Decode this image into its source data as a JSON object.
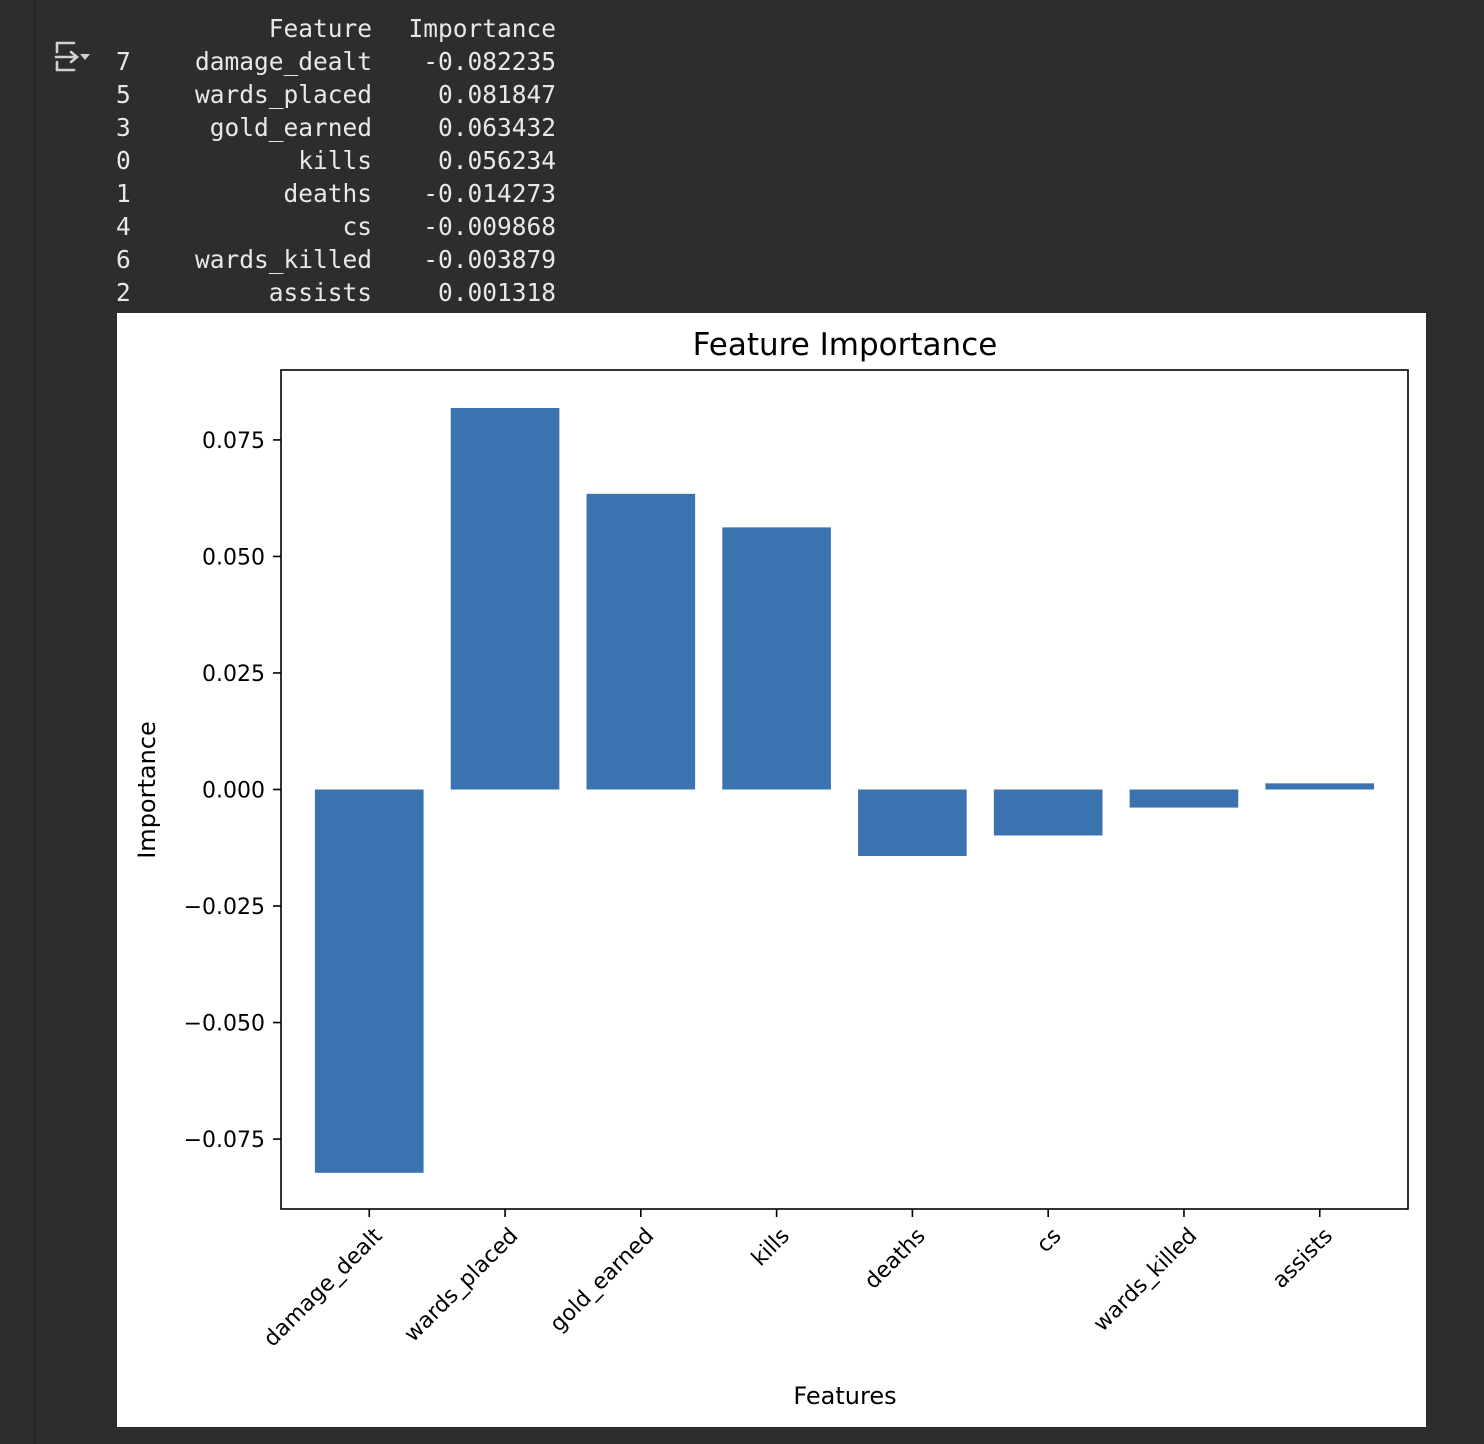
{
  "output_icon": "output-toggle-icon",
  "table": {
    "headers": [
      "",
      "Feature",
      "Importance"
    ],
    "rows": [
      {
        "index": "7",
        "feature": "damage_dealt",
        "importance": "-0.082235"
      },
      {
        "index": "5",
        "feature": "wards_placed",
        "importance": "0.081847"
      },
      {
        "index": "3",
        "feature": "gold_earned",
        "importance": "0.063432"
      },
      {
        "index": "0",
        "feature": "kills",
        "importance": "0.056234"
      },
      {
        "index": "1",
        "feature": "deaths",
        "importance": "-0.014273"
      },
      {
        "index": "4",
        "feature": "cs",
        "importance": "-0.009868"
      },
      {
        "index": "6",
        "feature": "wards_killed",
        "importance": "-0.003879"
      },
      {
        "index": "2",
        "feature": "assists",
        "importance": "0.001318"
      }
    ]
  },
  "chart_data": {
    "type": "bar",
    "title": "Feature Importance",
    "xlabel": "Features",
    "ylabel": "Importance",
    "categories": [
      "damage_dealt",
      "wards_placed",
      "gold_earned",
      "kills",
      "deaths",
      "cs",
      "wards_killed",
      "assists"
    ],
    "values": [
      -0.082235,
      0.081847,
      0.063432,
      0.056234,
      -0.014273,
      -0.009868,
      -0.003879,
      0.001318
    ],
    "ylim": [
      -0.09,
      0.09
    ],
    "yticks": [
      -0.075,
      -0.05,
      -0.025,
      0.0,
      0.025,
      0.05,
      0.075
    ],
    "ytick_labels": [
      "−0.075",
      "−0.050",
      "−0.025",
      "0.000",
      "0.025",
      "0.050",
      "0.075"
    ],
    "bar_color": "#3a73b0",
    "grid": false,
    "legend": "none"
  }
}
